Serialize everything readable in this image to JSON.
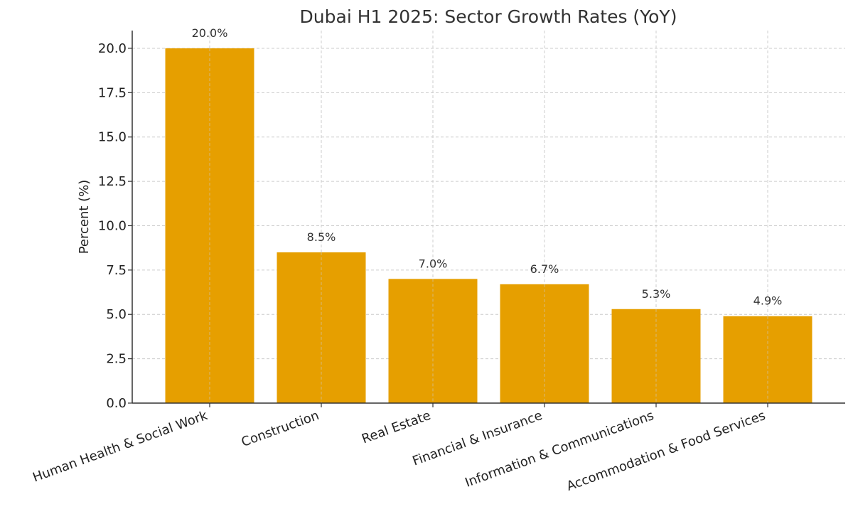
{
  "chart_data": {
    "type": "bar",
    "title": "Dubai H1 2025: Sector Growth Rates (YoY)",
    "xlabel": "",
    "ylabel": "Percent (%)",
    "categories": [
      "Human Health & Social Work",
      "Construction",
      "Real Estate",
      "Financial & Insurance",
      "Information & Communications",
      "Accommodation & Food Services"
    ],
    "values": [
      20.0,
      8.5,
      7.0,
      6.7,
      5.3,
      4.9
    ],
    "data_labels": [
      "20.0%",
      "8.5%",
      "7.0%",
      "6.7%",
      "5.3%",
      "4.9%"
    ],
    "ylim": [
      0,
      21
    ],
    "yticks": [
      0.0,
      2.5,
      5.0,
      7.5,
      10.0,
      12.5,
      15.0,
      17.5,
      20.0
    ],
    "ytick_labels": [
      "0.0",
      "2.5",
      "5.0",
      "7.5",
      "10.0",
      "12.5",
      "15.0",
      "17.5",
      "20.0"
    ],
    "grid": true,
    "colors": {
      "bar": "#E69F00",
      "grid": "#cccccc",
      "axis": "#333333",
      "text": "#333333"
    }
  }
}
